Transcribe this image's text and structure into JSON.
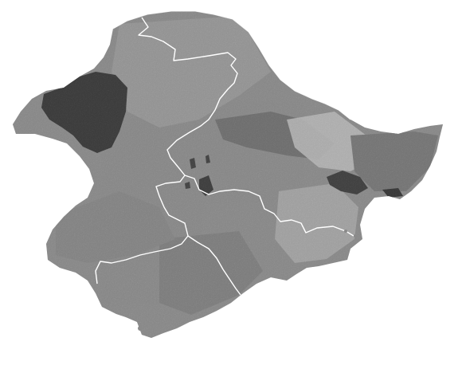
{
  "map": {
    "type": "grayscale raster map",
    "legend": "none",
    "boundary_color": "#ffffff",
    "background_color": "#ffffff",
    "land_base_color": "#8a8a8a",
    "dark_region_color": "#1a1a1a",
    "light_region_color": "#d8d8d8",
    "region_count": 6
  }
}
